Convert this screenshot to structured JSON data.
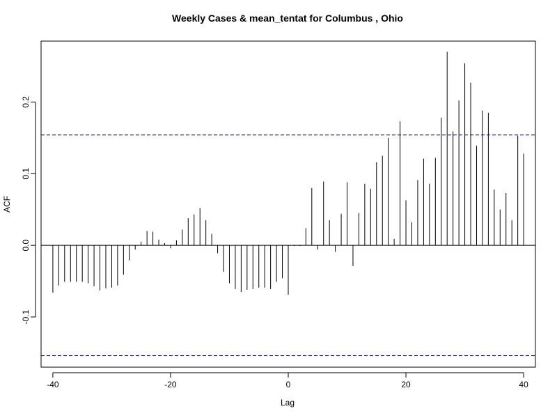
{
  "chart_data": {
    "type": "bar",
    "title": "Weekly Cases & mean_tentat for Columbus , Ohio",
    "xlabel": "Lag",
    "ylabel": "ACF",
    "xlim": [
      -42,
      42
    ],
    "ylim": [
      -0.17,
      0.285
    ],
    "xticks": [
      {
        "value": -40,
        "label": "-40"
      },
      {
        "value": -20,
        "label": "-20"
      },
      {
        "value": 0,
        "label": "0"
      },
      {
        "value": 20,
        "label": "20"
      },
      {
        "value": 40,
        "label": "40"
      }
    ],
    "yticks": [
      {
        "value": -0.1,
        "label": "-0.1"
      },
      {
        "value": 0.0,
        "label": "0.0"
      },
      {
        "value": 0.1,
        "label": "0.1"
      },
      {
        "value": 0.2,
        "label": "0.2"
      }
    ],
    "confidence_bounds": [
      0.154,
      -0.154
    ],
    "zero_line": true,
    "grid": false,
    "colors": {
      "bars": "#000000",
      "confidence": "#00008b",
      "axes": "#000000"
    },
    "lags": [
      -40,
      -39,
      -38,
      -37,
      -36,
      -35,
      -34,
      -33,
      -32,
      -31,
      -30,
      -29,
      -28,
      -27,
      -26,
      -25,
      -24,
      -23,
      -22,
      -21,
      -20,
      -19,
      -18,
      -17,
      -16,
      -15,
      -14,
      -13,
      -12,
      -11,
      -10,
      -9,
      -8,
      -7,
      -6,
      -5,
      -4,
      -3,
      -2,
      -1,
      0,
      1,
      2,
      3,
      4,
      5,
      6,
      7,
      8,
      9,
      10,
      11,
      12,
      13,
      14,
      15,
      16,
      17,
      18,
      19,
      20,
      21,
      22,
      23,
      24,
      25,
      26,
      27,
      28,
      29,
      30,
      31,
      32,
      33,
      34,
      35,
      36,
      37,
      38,
      39,
      40
    ],
    "values": [
      -0.066,
      -0.056,
      -0.051,
      -0.051,
      -0.051,
      -0.051,
      -0.053,
      -0.057,
      -0.063,
      -0.06,
      -0.059,
      -0.056,
      -0.041,
      -0.021,
      -0.006,
      0.005,
      0.02,
      0.019,
      0.008,
      0.003,
      -0.004,
      0.007,
      0.022,
      0.038,
      0.043,
      0.052,
      0.035,
      0.016,
      -0.011,
      -0.037,
      -0.053,
      -0.061,
      -0.065,
      -0.062,
      -0.061,
      -0.059,
      -0.059,
      -0.061,
      -0.051,
      -0.046,
      -0.069,
      -0.001,
      -0.001,
      0.024,
      0.08,
      -0.006,
      0.089,
      0.035,
      -0.009,
      0.044,
      0.088,
      -0.029,
      0.045,
      0.086,
      0.079,
      0.116,
      0.125,
      0.15,
      0.009,
      0.173,
      0.063,
      0.032,
      0.091,
      0.121,
      0.086,
      0.122,
      0.178,
      0.27,
      0.159,
      0.202,
      0.254,
      0.227,
      0.139,
      0.188,
      0.185,
      0.078,
      0.05,
      0.073,
      0.035,
      0.153,
      0.128
    ]
  }
}
